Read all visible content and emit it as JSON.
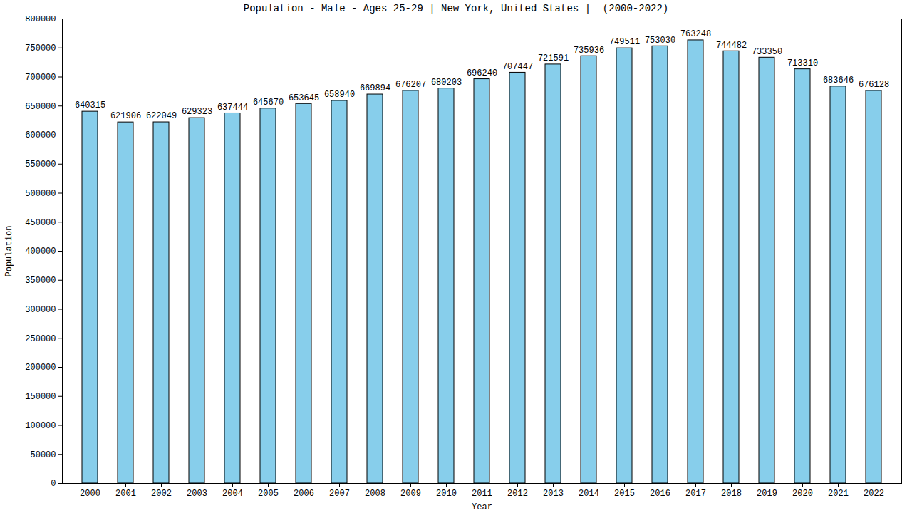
{
  "chart_data": {
    "type": "bar",
    "title": "Population - Male - Ages 25-29 | New York, United States |  (2000-2022)",
    "x_label": "Year",
    "y_label": "Population",
    "categories": [
      "2000",
      "2001",
      "2002",
      "2003",
      "2004",
      "2005",
      "2006",
      "2007",
      "2008",
      "2009",
      "2010",
      "2011",
      "2012",
      "2013",
      "2014",
      "2015",
      "2016",
      "2017",
      "2018",
      "2019",
      "2020",
      "2021",
      "2022"
    ],
    "values": [
      640315,
      621906,
      622049,
      629323,
      637444,
      645670,
      653645,
      658940,
      669894,
      676207,
      680203,
      696240,
      707447,
      721591,
      735936,
      749511,
      753030,
      763248,
      744482,
      733350,
      713310,
      683646,
      676128
    ],
    "color": "#87ceeb",
    "ylim": [
      0,
      800000
    ],
    "yticks": [
      0,
      50000,
      100000,
      150000,
      200000,
      250000,
      300000,
      350000,
      400000,
      450000,
      500000,
      550000,
      600000,
      650000,
      700000,
      750000,
      800000
    ],
    "grid": false,
    "data_labels": true
  }
}
